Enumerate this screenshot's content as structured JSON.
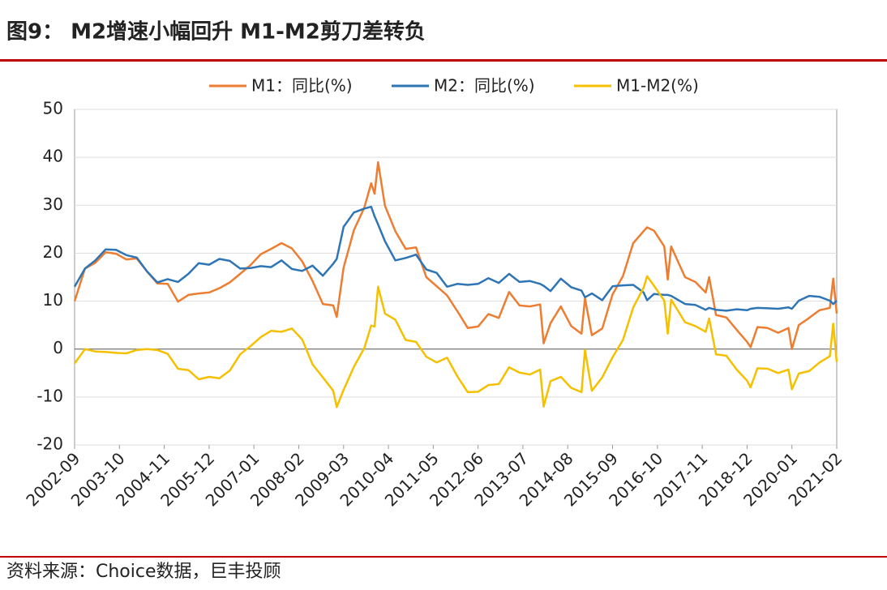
{
  "chart_data": {
    "type": "line",
    "title": "图9： M2增速小幅回升 M1-M2剪刀差转负",
    "source": "资料来源：Choice数据，巨丰投顾",
    "x": [
      "2002-09",
      "2002-12",
      "2003-03",
      "2003-06",
      "2003-09",
      "2003-12",
      "2004-03",
      "2004-06",
      "2004-09",
      "2004-12",
      "2005-03",
      "2005-06",
      "2005-09",
      "2005-12",
      "2006-03",
      "2006-06",
      "2006-09",
      "2006-12",
      "2007-03",
      "2007-06",
      "2007-09",
      "2007-12",
      "2008-03",
      "2008-06",
      "2008-09",
      "2008-12",
      "2009-01",
      "2009-03",
      "2009-06",
      "2009-09",
      "2009-11",
      "2009-12",
      "2010-01",
      "2010-03",
      "2010-06",
      "2010-09",
      "2010-12",
      "2011-03",
      "2011-06",
      "2011-09",
      "2011-12",
      "2012-03",
      "2012-06",
      "2012-09",
      "2012-12",
      "2013-03",
      "2013-06",
      "2013-09",
      "2013-12",
      "2014-01",
      "2014-03",
      "2014-06",
      "2014-09",
      "2014-12",
      "2015-01",
      "2015-03",
      "2015-06",
      "2015-09",
      "2015-12",
      "2016-03",
      "2016-06",
      "2016-07",
      "2016-09",
      "2016-12",
      "2017-01",
      "2017-02",
      "2017-06",
      "2017-09",
      "2017-12",
      "2018-01",
      "2018-03",
      "2018-06",
      "2018-09",
      "2018-12",
      "2019-01",
      "2019-03",
      "2019-06",
      "2019-09",
      "2019-12",
      "2020-01",
      "2020-03",
      "2020-06",
      "2020-09",
      "2020-12",
      "2021-01",
      "2021-02"
    ],
    "series": [
      {
        "name": "M1：同比(%)",
        "color": "#ed7d31",
        "values": [
          10,
          16.8,
          18,
          20.2,
          19.9,
          18.7,
          18.9,
          16.2,
          13.7,
          13.6,
          9.9,
          11.3,
          11.6,
          11.8,
          12.7,
          13.9,
          15.7,
          17.5,
          19.8,
          20.9,
          22.1,
          21,
          18.3,
          14.2,
          9.4,
          9.1,
          6.7,
          17,
          24.8,
          29.5,
          34.6,
          32.4,
          39,
          29.9,
          24.6,
          20.9,
          21.2,
          15,
          13.1,
          11.2,
          7.9,
          4.4,
          4.7,
          7.3,
          6.5,
          11.9,
          9.1,
          8.9,
          9.3,
          1.2,
          5.4,
          8.9,
          4.8,
          3.2,
          10.6,
          2.9,
          4.3,
          11.4,
          15.2,
          22.1,
          24.6,
          25.4,
          24.7,
          21.4,
          14.5,
          21.4,
          15,
          14,
          11.8,
          15,
          7.1,
          6.6,
          4,
          1.5,
          0.4,
          4.6,
          4.4,
          3.4,
          4.4,
          0,
          5,
          6.5,
          8.1,
          8.6,
          14.7,
          7.4
        ]
      },
      {
        "name": "M2：同比(%)",
        "color": "#2e75b6",
        "values": [
          13,
          16.8,
          18.5,
          20.8,
          20.7,
          19.6,
          19.1,
          16.2,
          13.9,
          14.6,
          14,
          15.7,
          17.9,
          17.6,
          18.8,
          18.4,
          16.8,
          16.9,
          17.3,
          17.1,
          18.5,
          16.7,
          16.3,
          17.4,
          15.3,
          17.8,
          18.8,
          25.5,
          28.5,
          29.3,
          29.7,
          27.7,
          26,
          22.5,
          18.5,
          19,
          19.7,
          16.6,
          15.9,
          13,
          13.6,
          13.4,
          13.6,
          14.8,
          13.8,
          15.7,
          14,
          14.2,
          13.6,
          13.2,
          12.1,
          14.7,
          12.9,
          12.2,
          10.8,
          11.6,
          10.2,
          13.1,
          13.3,
          13.4,
          11.8,
          10.2,
          11.5,
          11.3,
          11.3,
          11.1,
          9.4,
          9.2,
          8.2,
          8.6,
          8.2,
          8,
          8.3,
          8.1,
          8.4,
          8.6,
          8.5,
          8.4,
          8.7,
          8.4,
          10.1,
          11.1,
          10.9,
          10.1,
          9.4,
          10.1
        ]
      },
      {
        "name": "M1-M2(%)",
        "color": "#f5c000",
        "values": [
          -3,
          0,
          -0.5,
          -0.6,
          -0.8,
          -0.9,
          -0.2,
          0,
          -0.2,
          -1,
          -4.1,
          -4.4,
          -6.3,
          -5.8,
          -6.1,
          -4.5,
          -1.1,
          0.6,
          2.5,
          3.8,
          3.6,
          4.3,
          2,
          -3.2,
          -5.9,
          -8.7,
          -12.1,
          -8.5,
          -3.7,
          0.2,
          4.9,
          4.7,
          13,
          7.4,
          6.1,
          1.9,
          1.5,
          -1.6,
          -2.8,
          -1.8,
          -5.7,
          -9,
          -8.9,
          -7.5,
          -7.3,
          -3.8,
          -4.9,
          -5.3,
          -4.3,
          -12,
          -6.7,
          -5.8,
          -8.1,
          -9,
          -0.2,
          -8.7,
          -5.9,
          -1.7,
          1.9,
          8.7,
          12.8,
          15.2,
          13.2,
          10.1,
          3.2,
          10.3,
          5.6,
          4.8,
          3.6,
          6.4,
          -1.1,
          -1.4,
          -4.3,
          -6.6,
          -8,
          -4,
          -4.1,
          -5,
          -4.3,
          -8.4,
          -5.1,
          -4.6,
          -2.8,
          -1.5,
          5.3,
          -2.7
        ]
      }
    ],
    "xlim": [
      "2002-09",
      "2021-02"
    ],
    "xticks": [
      "2002-09",
      "2003-10",
      "2004-11",
      "2005-12",
      "2007-01",
      "2008-02",
      "2009-03",
      "2010-04",
      "2011-05",
      "2012-06",
      "2013-07",
      "2014-08",
      "2015-09",
      "2016-10",
      "2017-11",
      "2018-12",
      "2020-01",
      "2021-02"
    ],
    "ylim": [
      -20,
      50
    ],
    "yticks": [
      -20,
      -10,
      0,
      10,
      20,
      30,
      40,
      50
    ],
    "grid": true,
    "legend": "top"
  }
}
